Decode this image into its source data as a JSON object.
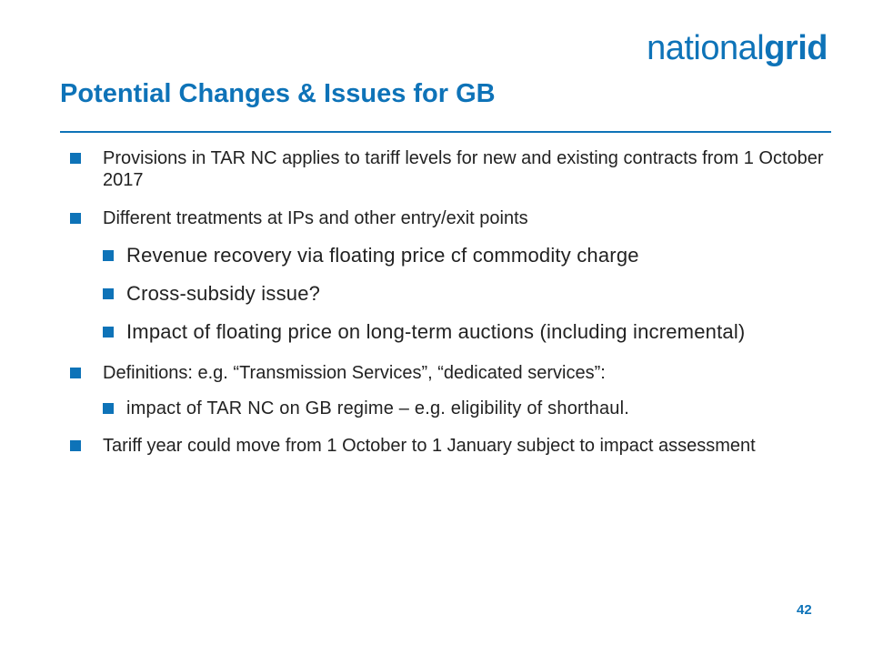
{
  "logo": {
    "part1": "national",
    "part2": "grid"
  },
  "slide": {
    "title": "Potential Changes & Issues for GB",
    "page_number": "42"
  },
  "bullets": [
    {
      "text": "Provisions in TAR NC applies to tariff levels for new and existing contracts from 1 October 2017"
    },
    {
      "text": "Different treatments at IPs and other entry/exit points",
      "sub": [
        "Revenue recovery via floating price cf commodity charge",
        "Cross-subsidy issue?",
        "Impact of floating price on long-term auctions (including incremental)"
      ]
    },
    {
      "text": "Definitions: e.g. “Transmission Services”, “dedicated services”:",
      "sub": [
        "impact of TAR NC on GB regime – e.g. eligibility of shorthaul."
      ]
    },
    {
      "text": "Tariff year could move from 1 October to 1 January subject to impact assessment"
    }
  ],
  "colors": {
    "accent": "#0e73b8",
    "text": "#222222"
  }
}
